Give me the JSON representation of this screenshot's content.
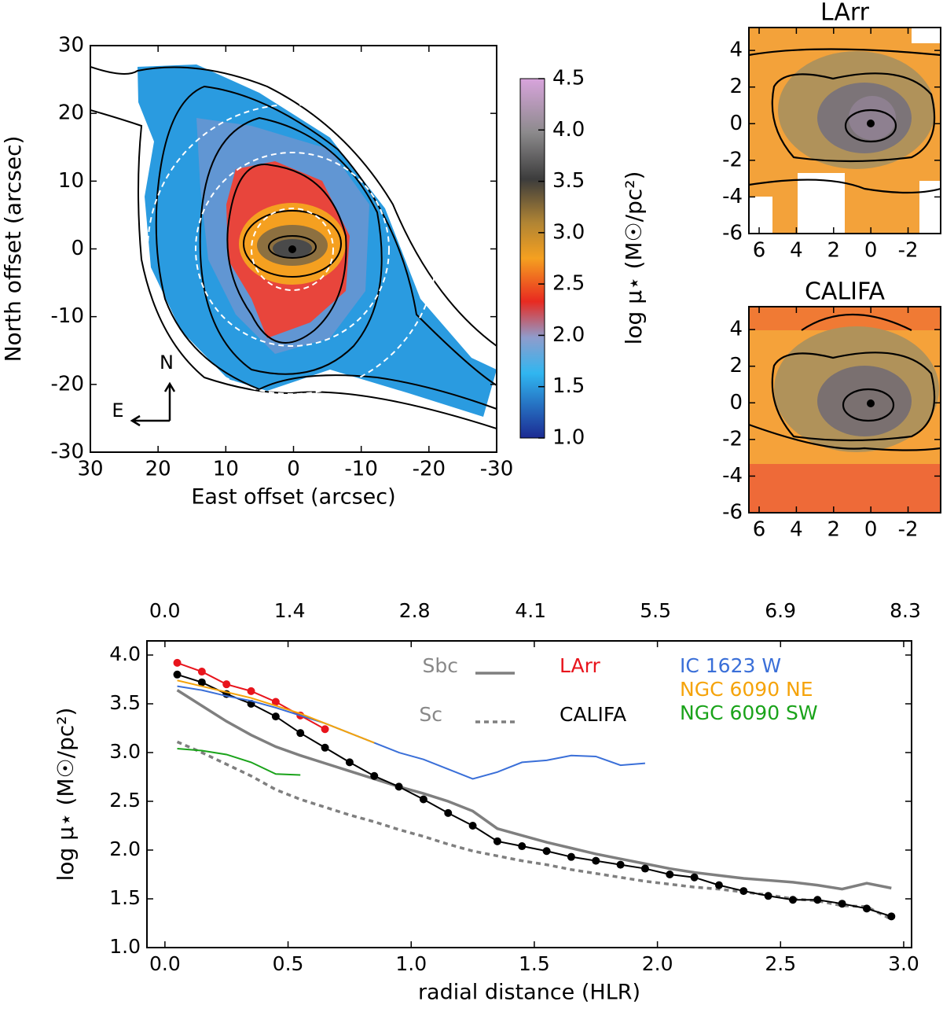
{
  "chart_data": [
    {
      "type": "map",
      "xlabel": "East offset (arcsec)",
      "ylabel": "North offset (arcsec)",
      "xlim": [
        30,
        -30
      ],
      "ylim": [
        -30,
        30
      ],
      "xticks": [
        30,
        20,
        10,
        0,
        -10,
        -20,
        -30
      ],
      "yticks": [
        -30,
        -20,
        -10,
        0,
        10,
        20,
        30
      ],
      "compass": [
        "N",
        "E"
      ],
      "colorbar": {
        "label": "log μ⋆ (M☉/pc²)",
        "lim": [
          1.0,
          4.5
        ],
        "ticks": [
          {
            "value": 1,
            "label": "1.0"
          },
          1.5,
          {
            "value": 2,
            "label": "2.0"
          },
          2.5,
          {
            "value": 3,
            "label": "3.0"
          },
          3.5,
          {
            "value": 4,
            "label": "4.0"
          },
          4.5
        ]
      }
    },
    {
      "type": "map",
      "title": "LArr",
      "xlim": [
        6.55,
        -3.75
      ],
      "ylim": [
        -6,
        5.25
      ],
      "xticks": [
        6,
        4,
        2,
        0,
        -2
      ],
      "yticks": [
        -6,
        -4,
        -2,
        0,
        2,
        4
      ]
    },
    {
      "type": "map",
      "title": "CALIFA",
      "xlim": [
        6.55,
        -3.75
      ],
      "ylim": [
        -6,
        5.25
      ],
      "xticks": [
        6,
        4,
        2,
        0,
        -2
      ],
      "yticks": [
        -6,
        -4,
        -2,
        0,
        2,
        4
      ]
    },
    {
      "type": "line",
      "xlabel": "radial distance (HLR)",
      "ylabel": "log μ⋆ (M☉/pc²)",
      "xlim": [
        -0.073,
        3.032
      ],
      "ylim": [
        1.0,
        4.145
      ],
      "xticks": [
        {
          "value": 0,
          "label": "0.0"
        },
        0.5,
        {
          "value": 1,
          "label": "1.0"
        },
        1.5,
        {
          "value": 2,
          "label": "2.0"
        },
        2.5,
        {
          "value": 3,
          "label": "3.0"
        }
      ],
      "yticks": [
        {
          "value": 1,
          "label": "1.0"
        },
        1.5,
        {
          "value": 2,
          "label": "2.0"
        },
        2.5,
        {
          "value": 3,
          "label": "3.0"
        },
        3.5,
        {
          "value": 4,
          "label": "4.0"
        }
      ],
      "x2lim": [
        -0.2,
        8.37
      ],
      "x2ticks": [
        {
          "value": 0,
          "label": "0.0"
        },
        1.4,
        2.8,
        4.1,
        5.5,
        6.9,
        8.3
      ],
      "x": [
        0.05,
        0.15,
        0.25,
        0.35,
        0.45,
        0.55,
        0.65,
        0.75,
        0.85,
        0.95,
        1.05,
        1.15,
        1.25,
        1.35,
        1.45,
        1.55,
        1.65,
        1.75,
        1.85,
        1.95,
        2.05,
        2.15,
        2.25,
        2.35,
        2.45,
        2.55,
        2.65,
        2.75,
        2.85,
        2.95
      ],
      "series": [
        {
          "name": "Sbc",
          "color": "#7f7f7f",
          "linestyle": "solid",
          "values": [
            3.64,
            3.48,
            3.32,
            3.18,
            3.06,
            2.97,
            2.89,
            2.81,
            2.73,
            2.65,
            2.58,
            2.5,
            2.4,
            2.22,
            2.15,
            2.08,
            2.02,
            1.96,
            1.91,
            1.86,
            1.81,
            1.77,
            1.74,
            1.71,
            1.69,
            1.67,
            1.64,
            1.6,
            1.66,
            1.61
          ]
        },
        {
          "name": "Sc",
          "color": "#7f7f7f",
          "linestyle": "dashed",
          "values": [
            3.11,
            3.0,
            2.88,
            2.76,
            2.62,
            2.52,
            2.44,
            2.36,
            2.29,
            2.21,
            2.14,
            2.06,
            1.99,
            1.94,
            1.89,
            1.85,
            1.8,
            1.76,
            1.72,
            1.68,
            1.65,
            1.62,
            1.6,
            1.57,
            1.54,
            1.5,
            1.48,
            1.43,
            1.42,
            1.29
          ]
        },
        {
          "name": "LArr",
          "color": "#e8141c",
          "linestyle": "solid",
          "markers": true,
          "values": [
            3.92,
            3.83,
            3.7,
            3.63,
            3.52,
            3.38,
            3.24,
            null,
            null,
            null,
            null,
            null,
            null,
            null,
            null,
            null,
            null,
            null,
            null,
            null,
            null,
            null,
            null,
            null,
            null,
            null,
            null,
            null,
            null,
            null
          ]
        },
        {
          "name": "CALIFA",
          "color": "#000000",
          "linestyle": "solid",
          "markers": true,
          "values": [
            3.8,
            3.72,
            3.6,
            3.5,
            3.37,
            3.2,
            3.05,
            2.9,
            2.76,
            2.65,
            2.52,
            2.38,
            2.25,
            2.09,
            2.04,
            1.99,
            1.93,
            1.89,
            1.85,
            1.81,
            1.75,
            1.72,
            1.64,
            1.58,
            1.53,
            1.49,
            1.49,
            1.45,
            1.4,
            1.32
          ]
        },
        {
          "name": "IC 1623 W",
          "color": "#3a6fd8",
          "linestyle": "solid",
          "values": [
            3.68,
            3.64,
            3.58,
            3.53,
            3.46,
            3.38,
            3.3,
            3.2,
            3.1,
            3.0,
            2.93,
            2.83,
            2.73,
            2.8,
            2.9,
            2.92,
            2.97,
            2.96,
            2.87,
            2.89,
            null,
            null,
            null,
            null,
            null,
            null,
            null,
            null,
            null,
            null
          ]
        },
        {
          "name": "NGC 6090 NE",
          "color": "#f5a30a",
          "linestyle": "solid",
          "values": [
            3.74,
            3.68,
            3.62,
            3.56,
            3.48,
            3.4,
            3.3,
            3.2,
            3.1,
            null,
            null,
            null,
            null,
            null,
            null,
            null,
            null,
            null,
            null,
            null,
            null,
            null,
            null,
            null,
            null,
            null,
            null,
            null,
            null,
            null
          ]
        },
        {
          "name": "NGC 6090 SW",
          "color": "#1aa31a",
          "linestyle": "solid",
          "values": [
            3.04,
            3.02,
            2.98,
            2.9,
            2.78,
            2.77,
            null,
            null,
            null,
            null,
            null,
            null,
            null,
            null,
            null,
            null,
            null,
            null,
            null,
            null,
            null,
            null,
            null,
            null,
            null,
            null,
            null,
            null,
            null,
            null
          ]
        }
      ]
    }
  ]
}
